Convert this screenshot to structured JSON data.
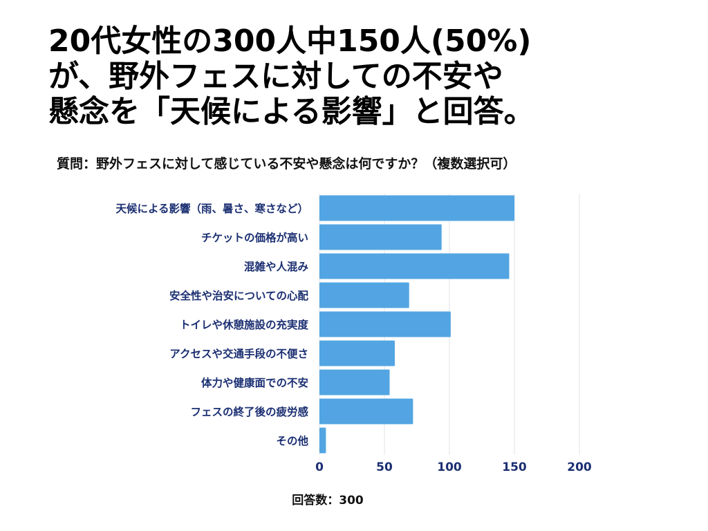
{
  "headline": {
    "lines": [
      "20代女性の300人中150人(50%)",
      "が、野外フェスに対しての不安や",
      "懸念を「天候による影響」と回答。"
    ]
  },
  "question": "質問：野外フェスに対して感じている不安や懸念は何ですか？（複数選択可）",
  "footnote": "回答数：300",
  "colors": {
    "bar": "#52a5e2",
    "label": "#1b2f72",
    "grid": "#dfe3ea",
    "axis": "#1b2f72"
  },
  "chart_data": {
    "type": "bar",
    "orientation": "horizontal",
    "categories": [
      "天候による影響（雨、暑さ、寒さなど）",
      "チケットの価格が高い",
      "混雑や人混み",
      "安全性や治安についての心配",
      "トイレや休憩施設の充実度",
      "アクセスや交通手段の不便さ",
      "体力や健康面での不安",
      "フェスの終了後の疲労感",
      "その他"
    ],
    "values": [
      150,
      94,
      146,
      69,
      101,
      58,
      54,
      72,
      5
    ],
    "xlim": [
      0,
      200
    ],
    "xticks": [
      0,
      50,
      100,
      150,
      200
    ],
    "grid": true,
    "legend": "none"
  }
}
